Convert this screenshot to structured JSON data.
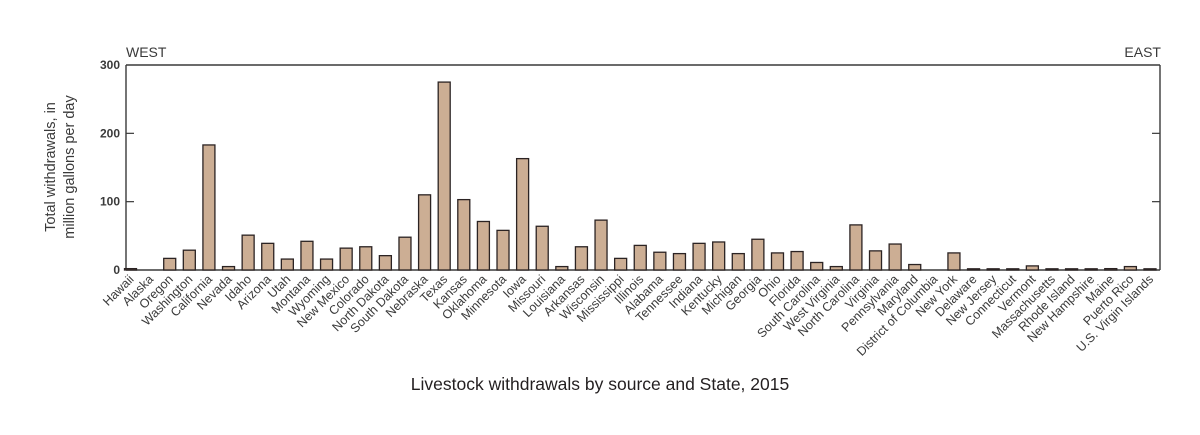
{
  "chart_data": {
    "type": "bar",
    "title": "Livestock withdrawals by source and State, 2015",
    "xlabel": "",
    "ylabel": [
      "Total withdrawals, in",
      "million gallons per day"
    ],
    "ylim": [
      0,
      300
    ],
    "yticks": [
      0,
      100,
      200,
      300
    ],
    "grid": false,
    "legend": "none",
    "annotations": {
      "left": "WEST",
      "right": "EAST"
    },
    "bar_color": "#ccae94",
    "categories": [
      "Hawaii",
      "Alaska",
      "Oregon",
      "Washington",
      "California",
      "Nevada",
      "Idaho",
      "Arizona",
      "Utah",
      "Montana",
      "Wyoming",
      "New Mexico",
      "Colorado",
      "North Dakota",
      "South Dakota",
      "Nebraska",
      "Texas",
      "Kansas",
      "Oklahoma",
      "Minnesota",
      "Iowa",
      "Missouri",
      "Louisiana",
      "Arkansas",
      "Wisconsin",
      "Mississippi",
      "Illinois",
      "Alabama",
      "Tennessee",
      "Indiana",
      "Kentucky",
      "Michigan",
      "Georgia",
      "Ohio",
      "Florida",
      "South Carolina",
      "West Virginia",
      "North Carolina",
      "Virginia",
      "Pennsylvania",
      "Maryland",
      "District of Columbia",
      "New York",
      "Delaware",
      "New Jersey",
      "Connecticut",
      "Vermont",
      "Massachusetts",
      "Rhode Island",
      "New Hampshire",
      "Maine",
      "Puerto Rico",
      "U.S. Virgin Islands"
    ],
    "values": [
      2,
      0,
      17,
      29,
      183,
      5,
      51,
      39,
      16,
      42,
      16,
      32,
      34,
      21,
      48,
      110,
      275,
      103,
      71,
      58,
      163,
      64,
      5,
      34,
      73,
      17,
      36,
      26,
      24,
      39,
      41,
      24,
      45,
      25,
      27,
      11,
      5,
      66,
      28,
      38,
      8,
      0,
      25,
      0.5,
      0.5,
      0.5,
      6,
      1,
      0.3,
      1,
      2,
      5,
      0.3
    ]
  }
}
